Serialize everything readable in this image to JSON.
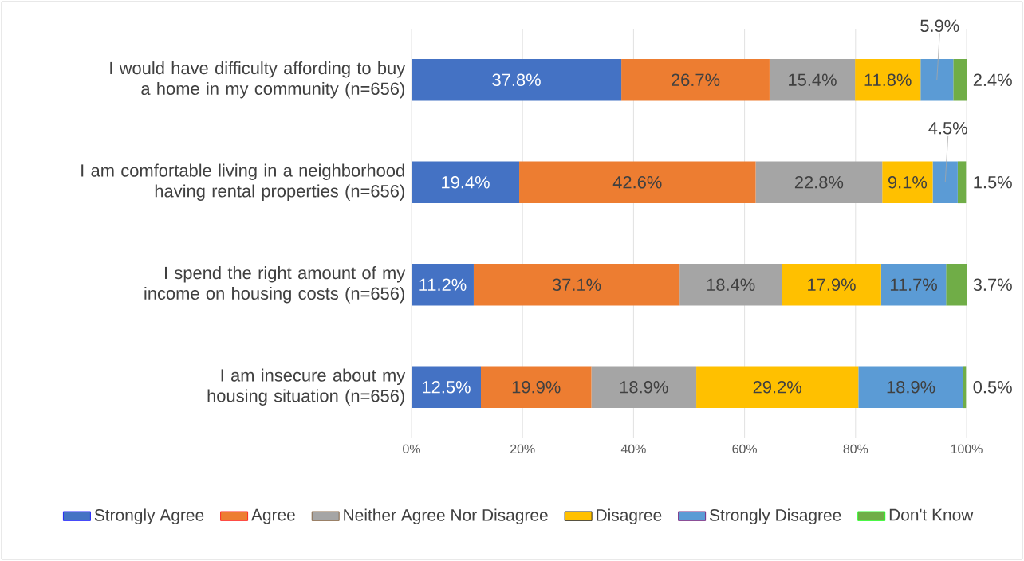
{
  "chart_data": {
    "type": "bar",
    "orientation": "horizontal",
    "stacked": true,
    "grid": "x",
    "legend": "bottom",
    "categories": [
      "I would have difficulty affording to buy a home in my community (n=656)",
      "I am comfortable living in a neighborhood having rental properties (n=656)",
      "I spend the right amount of my income on housing costs (n=656)",
      "I am insecure about my housing situation (n=656)"
    ],
    "xlim": [
      0,
      100
    ],
    "xticks": [
      {
        "value": 0,
        "label": "0%"
      },
      {
        "value": 20,
        "label": "20%"
      },
      {
        "value": 40,
        "label": "40%"
      },
      {
        "value": 60,
        "label": "60%"
      },
      {
        "value": 80,
        "label": "80%"
      },
      {
        "value": 100,
        "label": "100%"
      }
    ],
    "series": [
      {
        "name": "Strongly Agree",
        "color": "#4472c4",
        "values": [
          37.8,
          19.4,
          11.2,
          12.5
        ],
        "value_labels": [
          "37.8%",
          "19.4%",
          "11.2%",
          "12.5%"
        ]
      },
      {
        "name": "Agree",
        "color": "#ed7d31",
        "values": [
          26.7,
          42.6,
          37.1,
          19.9
        ],
        "value_labels": [
          "26.7%",
          "42.6%",
          "37.1%",
          "19.9%"
        ]
      },
      {
        "name": "Neither Agree Nor Disagree",
        "color": "#a5a5a5",
        "values": [
          15.4,
          22.8,
          18.4,
          18.9
        ],
        "value_labels": [
          "15.4%",
          "22.8%",
          "18.4%",
          "18.9%"
        ]
      },
      {
        "name": "Disagree",
        "color": "#ffc000",
        "values": [
          11.8,
          9.1,
          17.9,
          29.2
        ],
        "value_labels": [
          "11.8%",
          "9.1%",
          "17.9%",
          "29.2%"
        ]
      },
      {
        "name": "Strongly Disagree",
        "color": "#5b9bd5",
        "values": [
          5.9,
          4.5,
          11.7,
          18.9
        ],
        "value_labels": [
          "5.9%",
          "4.5%",
          "11.7%",
          "18.9%"
        ]
      },
      {
        "name": "Don't Know",
        "color": "#70ad47",
        "values": [
          2.4,
          1.5,
          3.7,
          0.5
        ],
        "value_labels": [
          "2.4%",
          "1.5%",
          "3.7%",
          "0.5%"
        ]
      }
    ]
  }
}
